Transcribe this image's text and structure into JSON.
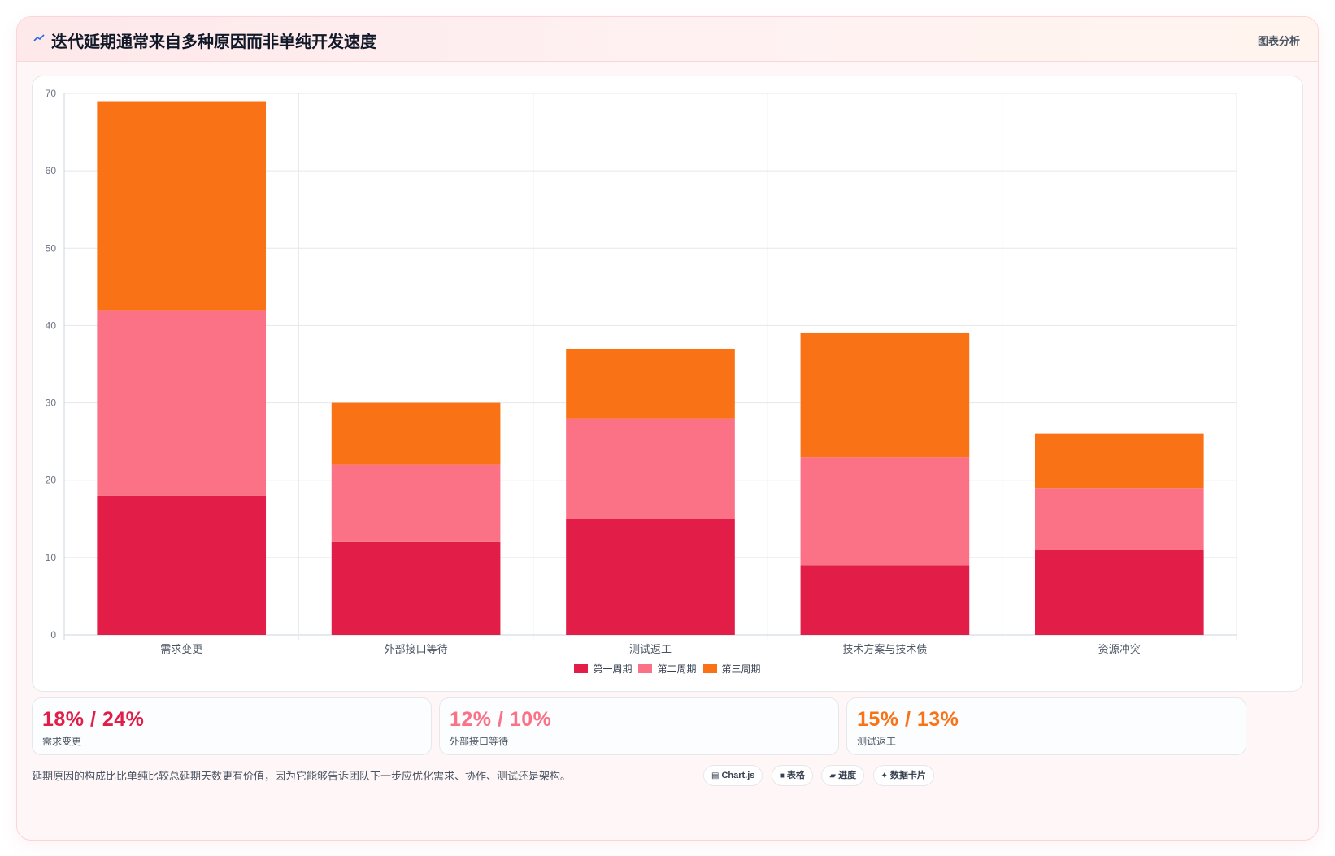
{
  "header": {
    "icon": "line-chart-icon",
    "title": "迭代延期通常来自多种原因而非单纯开发速度",
    "tag": "图表分析"
  },
  "chart_data": {
    "type": "bar",
    "stacked": true,
    "categories": [
      "需求变更",
      "外部接口等待",
      "测试返工",
      "技术方案与技术债",
      "资源冲突"
    ],
    "series": [
      {
        "name": "第一周期",
        "color": "#e11d48",
        "values": [
          18,
          12,
          15,
          9,
          11
        ]
      },
      {
        "name": "第二周期",
        "color": "#fb7185",
        "values": [
          24,
          10,
          13,
          14,
          8
        ]
      },
      {
        "name": "第三周期",
        "color": "#f97316",
        "values": [
          27,
          8,
          9,
          16,
          7
        ]
      }
    ],
    "ylim": [
      0,
      70
    ],
    "yticks": [
      0,
      10,
      20,
      30,
      40,
      50,
      60,
      70
    ],
    "grid": true,
    "legend_position": "bottom"
  },
  "stats": [
    {
      "value": "18% / 24%",
      "label": "需求变更",
      "color": "#e11d48"
    },
    {
      "value": "12% / 10%",
      "label": "外部接口等待",
      "color": "#fb7185"
    },
    {
      "value": "15% / 13%",
      "label": "测试返工",
      "color": "#f97316"
    }
  ],
  "footnote": "延期原因的构成比比单纯比较总延期天数更有价值，因为它能够告诉团队下一步应优化需求、协作、测试还是架构。",
  "chips": [
    {
      "icon": "chart-icon",
      "glyph": "▤",
      "label": "Chart.js"
    },
    {
      "icon": "table-icon",
      "glyph": "■",
      "label": "表格"
    },
    {
      "icon": "progress-icon",
      "glyph": "▰",
      "label": "进度"
    },
    {
      "icon": "sparkle-icon",
      "glyph": "✦",
      "label": "数据卡片"
    }
  ]
}
